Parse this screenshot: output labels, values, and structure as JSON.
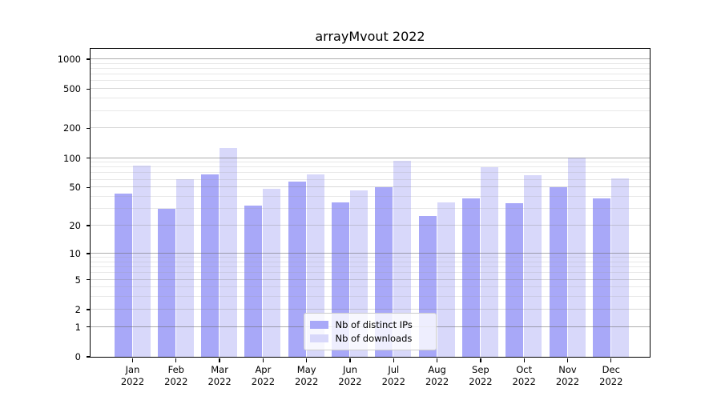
{
  "chart_data": {
    "type": "bar",
    "title": "arrayMvout 2022",
    "categories": [
      "Jan",
      "Feb",
      "Mar",
      "Apr",
      "May",
      "Jun",
      "Jul",
      "Aug",
      "Sep",
      "Oct",
      "Nov",
      "Dec"
    ],
    "x_year": "2022",
    "series": [
      {
        "name": "Nb of distinct IPs",
        "color": "#a8a8f8",
        "values": [
          43,
          30,
          68,
          32,
          57,
          35,
          50,
          25,
          38,
          34,
          50,
          38
        ]
      },
      {
        "name": "Nb of downloads",
        "color": "#d8d8fa",
        "values": [
          83,
          60,
          125,
          48,
          67,
          46,
          92,
          35,
          80,
          66,
          100,
          61
        ]
      }
    ],
    "yscale": "log1p",
    "ylim": [
      0,
      1000
    ],
    "yticks": [
      1000,
      500,
      200,
      100,
      50,
      20,
      10,
      5,
      2,
      1,
      0
    ],
    "grid": true,
    "legend_position": "lower center",
    "colors": {
      "spine": "#000000",
      "background": "#ffffff"
    }
  }
}
